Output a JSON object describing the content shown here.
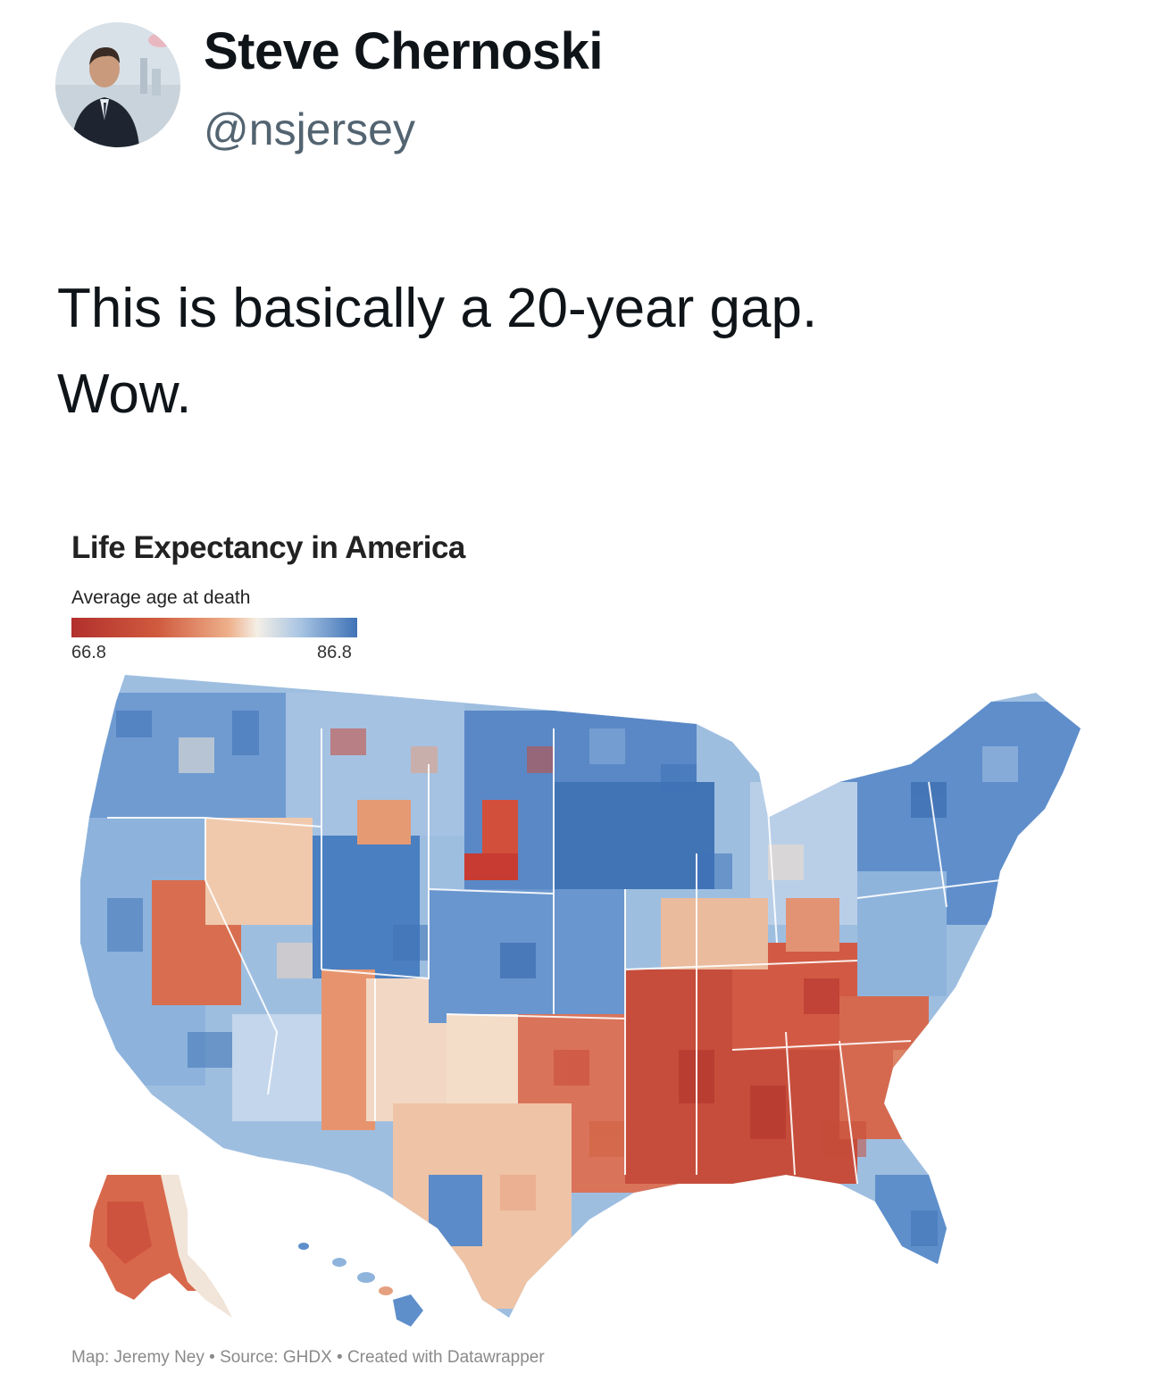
{
  "tweet": {
    "author": {
      "display_name": "Steve Chernoski",
      "handle": "@nsjersey"
    },
    "text_lines": [
      "This is basically a 20-year gap.",
      "Wow."
    ]
  },
  "map": {
    "title": "Life Expectancy in America",
    "legend": {
      "title": "Average age at death",
      "min": "66.8",
      "max": "86.8",
      "min_color": "#b2302c",
      "max_color": "#3f72b6"
    },
    "credits": "Map: Jeremy Ney • Source: GHDX • Created with Datawrapper"
  },
  "colors": {
    "text_primary": "#0f1419",
    "text_secondary": "#536471",
    "low_life_expectancy": "#c4493a",
    "high_life_expectancy": "#4a7fc1"
  }
}
